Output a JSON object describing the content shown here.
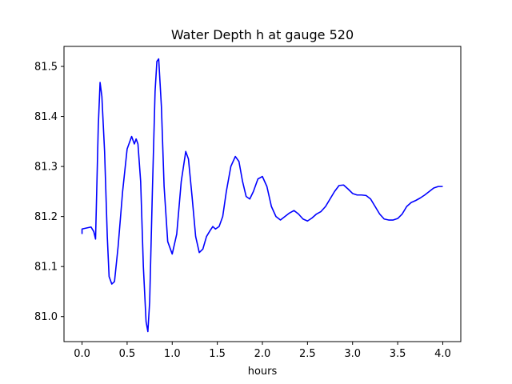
{
  "chart_data": {
    "type": "line",
    "title": "Water Depth h at gauge 520",
    "xlabel": "hours",
    "ylabel": "",
    "xlim": [
      -0.2,
      4.2
    ],
    "ylim": [
      80.95,
      81.54
    ],
    "xticks": [
      0.0,
      0.5,
      1.0,
      1.5,
      2.0,
      2.5,
      3.0,
      3.5,
      4.0
    ],
    "xtick_labels": [
      "0.0",
      "0.5",
      "1.0",
      "1.5",
      "2.0",
      "2.5",
      "3.0",
      "3.5",
      "4.0"
    ],
    "yticks": [
      81.0,
      81.1,
      81.2,
      81.3,
      81.4,
      81.5
    ],
    "ytick_labels": [
      "81.0",
      "81.1",
      "81.2",
      "81.3",
      "81.4",
      "81.5"
    ],
    "grid": false,
    "series": [
      {
        "color": "#0000ff",
        "x": [
          0.0,
          0.0,
          0.05,
          0.1,
          0.13,
          0.15,
          0.18,
          0.2,
          0.22,
          0.25,
          0.28,
          0.3,
          0.33,
          0.36,
          0.4,
          0.45,
          0.5,
          0.55,
          0.58,
          0.6,
          0.62,
          0.65,
          0.68,
          0.71,
          0.73,
          0.75,
          0.78,
          0.81,
          0.83,
          0.85,
          0.88,
          0.91,
          0.95,
          1.0,
          1.05,
          1.1,
          1.15,
          1.18,
          1.22,
          1.26,
          1.3,
          1.34,
          1.38,
          1.42,
          1.45,
          1.48,
          1.52,
          1.56,
          1.6,
          1.65,
          1.7,
          1.74,
          1.78,
          1.82,
          1.86,
          1.9,
          1.95,
          2.0,
          2.05,
          2.1,
          2.15,
          2.2,
          2.25,
          2.3,
          2.35,
          2.4,
          2.45,
          2.5,
          2.55,
          2.6,
          2.65,
          2.7,
          2.75,
          2.8,
          2.85,
          2.9,
          2.95,
          3.0,
          3.05,
          3.1,
          3.15,
          3.2,
          3.25,
          3.3,
          3.35,
          3.4,
          3.45,
          3.5,
          3.55,
          3.6,
          3.65,
          3.7,
          3.75,
          3.8,
          3.85,
          3.9,
          3.95,
          4.0
        ],
        "y": [
          81.165,
          81.175,
          81.177,
          81.179,
          81.17,
          81.155,
          81.38,
          81.468,
          81.44,
          81.33,
          81.16,
          81.08,
          81.065,
          81.07,
          81.14,
          81.25,
          81.335,
          81.36,
          81.345,
          81.355,
          81.345,
          81.27,
          81.1,
          80.99,
          80.97,
          81.03,
          81.25,
          81.45,
          81.51,
          81.515,
          81.42,
          81.26,
          81.15,
          81.125,
          81.165,
          81.27,
          81.33,
          81.315,
          81.24,
          81.16,
          81.128,
          81.135,
          81.16,
          81.172,
          81.18,
          81.175,
          81.18,
          81.2,
          81.25,
          81.3,
          81.32,
          81.31,
          81.27,
          81.24,
          81.235,
          81.25,
          81.275,
          81.28,
          81.26,
          81.22,
          81.2,
          81.193,
          81.2,
          81.207,
          81.212,
          81.205,
          81.195,
          81.191,
          81.197,
          81.205,
          81.21,
          81.22,
          81.235,
          81.25,
          81.262,
          81.263,
          81.255,
          81.246,
          81.243,
          81.243,
          81.242,
          81.235,
          81.22,
          81.205,
          81.195,
          81.193,
          81.193,
          81.196,
          81.205,
          81.22,
          81.228,
          81.232,
          81.237,
          81.243,
          81.25,
          81.257,
          81.26,
          81.26
        ]
      }
    ]
  }
}
